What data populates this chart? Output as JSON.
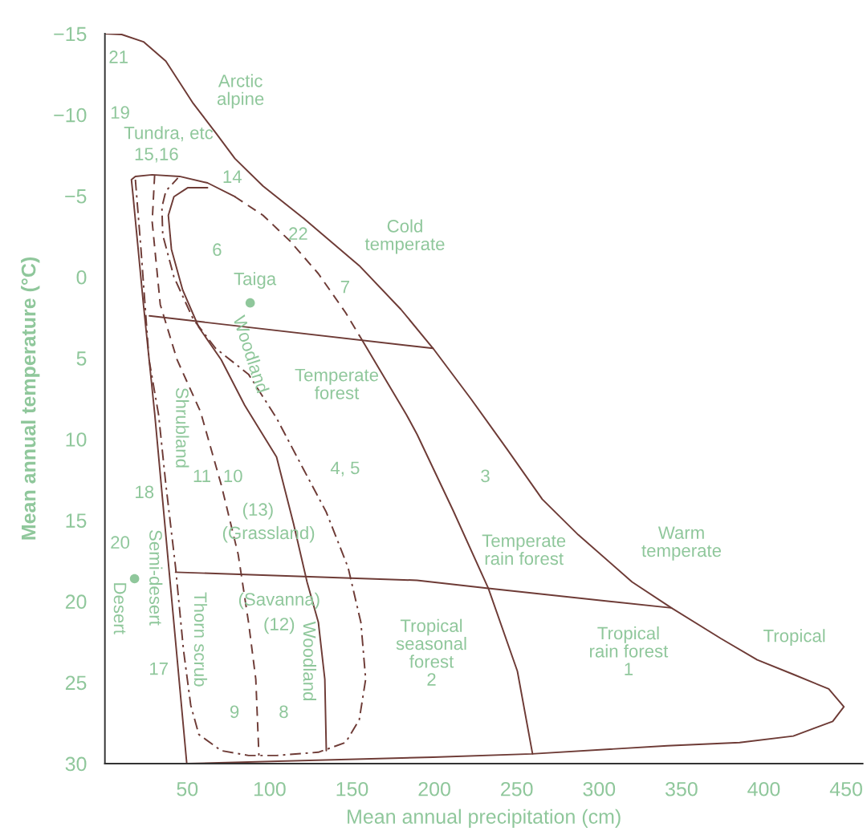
{
  "chart_data": {
    "type": "line",
    "xlabel": "Mean annual precipitation (cm)",
    "ylabel": "Mean annual temperature (°C)",
    "xlim": [
      0,
      460
    ],
    "ylim": [
      30,
      -15
    ],
    "xticks": [
      50,
      100,
      150,
      200,
      250,
      300,
      350,
      400,
      450
    ],
    "yticks": [
      {
        "value": -15,
        "label": "−15"
      },
      {
        "value": -10,
        "label": "−10"
      },
      {
        "value": -5,
        "label": "−5"
      },
      0,
      5,
      10,
      15,
      20,
      25,
      30
    ],
    "grid": false,
    "legend": false,
    "series": [
      {
        "color": "#6e3b36",
        "line_style": "solid",
        "x": [
          0,
          10.2,
          23.4,
          37,
          53.6,
          67.2,
          78.9,
          96,
          120.8,
          154.4,
          179.7,
          199.2,
          222.1,
          244,
          265.5,
          287.4,
          320,
          343.9,
          374.1,
          396,
          417.9,
          439.4,
          448.6,
          441.8,
          417.9,
          385.3,
          341.4,
          259.1,
          199.2,
          49.7
        ],
        "values": [
          -15,
          -14.95,
          -14.5,
          -13.3,
          -10.7,
          -8.9,
          -7.3,
          -5.6,
          -3.6,
          -0.7,
          2.0,
          4.4,
          7.5,
          10.6,
          13.7,
          15.9,
          18.8,
          20.4,
          22.3,
          23.6,
          24.5,
          25.4,
          26.5,
          27.4,
          28.3,
          28.7,
          28.9,
          29.4,
          29.6,
          30
        ]
      },
      {
        "type": "line",
        "color": "#6e3b36",
        "line_style": "solid",
        "x": [
          27,
          199.2
        ],
        "values": [
          2.4,
          4.4
        ]
      },
      {
        "type": "line",
        "color": "#6e3b36",
        "line_style": "solid",
        "x": [
          42.9,
          189.5,
          232.8,
          343.9
        ],
        "values": [
          18.2,
          18.7,
          19.2,
          20.4
        ]
      },
      {
        "type": "line",
        "color": "#6e3b36",
        "line_style": "solid",
        "x": [
          49.7,
          30.2,
          23.4,
          17.0,
          16.1,
          18.5,
          28.7,
          45.3,
          62.3,
          78.9
        ],
        "values": [
          30,
          8.4,
          1.7,
          -5.1,
          -6.0,
          -6.2,
          -6.3,
          -6.2,
          -5.8,
          -4.95
        ]
      },
      {
        "type": "line",
        "color": "#6e3b36",
        "line_style": "dashed",
        "x": [
          78.9,
          96,
          112.5,
          129.6,
          146.1,
          154.4
        ],
        "values": [
          -4.95,
          -3.8,
          -2.2,
          -0.2,
          2.2,
          3.6
        ]
      },
      {
        "type": "line",
        "color": "#6e3b36",
        "line_style": "solid",
        "x": [
          154.4,
          183.1,
          189.5,
          211.4,
          232.8,
          250.4,
          259.6
        ],
        "values": [
          3.6,
          8.5,
          9.7,
          14.4,
          19.2,
          24.3,
          29.4
        ]
      },
      {
        "type": "line",
        "color": "#6e3b36",
        "line_style": "dashdot",
        "x": [
          18.5,
          21.9,
          26.8,
          32.6,
          37.0,
          42.9,
          47.7,
          52.1,
          57.0,
          70.6,
          87.2,
          104.2,
          129.6,
          146.1,
          154.4,
          158.3,
          155.4,
          147.6,
          134.4,
          120.8,
          104.2,
          87.2,
          67.2,
          53.6,
          41.9,
          35.1,
          34.6,
          37.0,
          44.3
        ],
        "values": [
          -6.0,
          -1.7,
          5.1,
          8.5,
          12.8,
          17.9,
          23.0,
          26.4,
          28.2,
          29.2,
          29.5,
          29.5,
          29.3,
          28.7,
          27.3,
          24.8,
          21.3,
          17.9,
          14.5,
          11.9,
          8.7,
          6.0,
          4.4,
          2.6,
          0.0,
          -2.6,
          -4.3,
          -5.3,
          -6.1
        ]
      },
      {
        "type": "line",
        "color": "#6e3b36",
        "line_style": "dashed",
        "x": [
          30.2,
          28.7,
          33.6,
          43.8,
          58.0,
          70.6,
          80.9,
          87.2,
          91.6,
          93.5
        ],
        "values": [
          -6.3,
          -3.4,
          1.7,
          5.1,
          8.3,
          12.8,
          17.1,
          21.3,
          24.8,
          29.5
        ]
      },
      {
        "type": "line",
        "color": "#6e3b36",
        "line_style": "solid",
        "x": [
          62.3,
          50.2,
          41.9,
          38.5,
          40.4,
          47.2,
          57.0,
          70.6,
          84.8,
          104.2,
          114.5,
          122.7,
          129.6,
          133.5,
          134.4
        ],
        "values": [
          -5.5,
          -5.5,
          -4.95,
          -3.8,
          -1.7,
          0.8,
          3.1,
          5.1,
          7.9,
          11.1,
          15.2,
          18.8,
          21.3,
          24.8,
          29.2
        ]
      },
      {
        "type": "scatter",
        "color": "#8fc79b",
        "marker": "circle",
        "x": [
          88.2,
          18.0
        ],
        "values": [
          1.6,
          18.6
        ]
      }
    ],
    "annotations": [
      "21",
      "19",
      "Arctic\nalpine",
      "Tundra, etc",
      "15,16",
      "14",
      "Cold\ntemperate",
      "22",
      "6",
      "Taiga",
      "7",
      "Temperate\nforest",
      "4, 5",
      "3",
      "Woodland",
      "Shrubland",
      "11",
      "10",
      "18",
      "(13)",
      "(Grassland)",
      "Temperate\nrain forest",
      "Warm\ntemperate",
      "20",
      "Semi-desert",
      "Desert",
      "(Savanna)",
      "(12)",
      "Thorn scrub",
      "Woodland",
      "17",
      "Tropical\nseasonal\nforest\n2",
      "Tropical\nrain forest\n1",
      "Tropical",
      "9",
      "8"
    ]
  }
}
